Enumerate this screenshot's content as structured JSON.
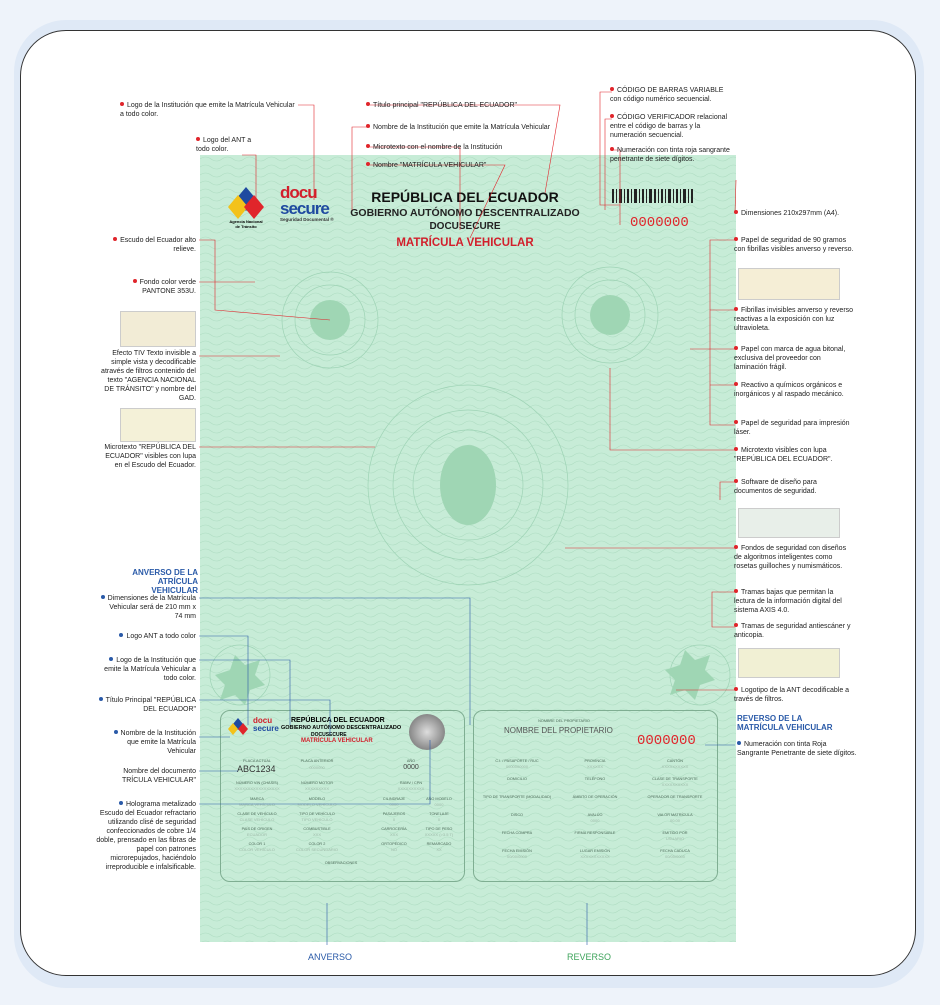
{
  "header": {
    "country": "REPÚBLICA DEL ECUADOR",
    "institution": "GOBIERNO AUTÓNOMO DESCENTRALIZADO",
    "institution_sub": "DOCUSECURE",
    "document_name": "MATRÍCULA VEHICULAR",
    "serial": "0000000",
    "ant_logo_lines": [
      "Agencia Nacional",
      "de Tránsito"
    ],
    "docusecure_logo": [
      "docu",
      "secure",
      "Seguridad Documental ®"
    ]
  },
  "left_annotations": [
    "Logo de la Institución que emite la Matrícula Vehicular a todo color.",
    "Logo del ANT a todo color.",
    "Escudo del Ecuador alto relieve.",
    "Fondo color verde PANTONE 353U.",
    "Efecto TIV Texto invisible a simple vista y decodificable através de filtros contenido del texto \"AGENCIA NACIONAL DE TRÁNSITO\" y nombre del GAD.",
    "Microtexto \"REPÚBLICA DEL ECUADOR\" visibles con lupa en el Escudo del Ecuador."
  ],
  "top_annotations": [
    "Título principal \"REPÚBLICA DEL ECUADOR\"",
    "Nombre de la Institución que emite la Matrícula Vehicular",
    "Microtexto con el nombre de la Institución",
    "Nombre \"MATRÍCULA VEHICULAR\""
  ],
  "right_annotations": [
    "CÓDIGO DE BARRAS VARIABLE con código numérico secuencial.",
    "CÓDIGO VERIFICADOR relacional entre el código de barras y la numeración secuencial.",
    "Numeración con tinta roja sangrante penetrante de siete dígitos.",
    "Dimensiones 210x297mm (A4).",
    "Papel de seguridad de 90 gramos con fibrillas visibles anverso y reverso.",
    "Fibrillas invisibles anverso y reverso reactivas a la exposición con luz ultravioleta.",
    "Papel con marca de agua bitonal, exclusiva del proveedor con laminación frágil.",
    "Reactivo a químicos orgánicos e inorgánicos y al raspado mecánico.",
    "Papel de seguridad para impresión láser.",
    "Microtexto visibles con lupa \"REPÚBLICA DEL ECUADOR\".",
    "Software de diseño para documentos de seguridad.",
    "Fondos de seguridad con diseños de algoritmos inteligentes como rosetas guilloches y numismáticos.",
    "Tramas bajas que permitan la lectura de la información digital del sistema AXIS 4.0.",
    "Tramas de seguridad antiescáner y anticopia.",
    "Logotipo de la ANT decodificable a través de filtros."
  ],
  "anverso_section": {
    "title": "ANVERSO DE LA ATRÍCULA VEHICULAR",
    "items": [
      "Dimensiones de la Matrícula Vehicular será de 210 mm x 74 mm",
      "Logo ANT a todo color",
      "Logo de la Institución que emite la Matrícula Vehicular a todo color.",
      "Título Principal \"REPÚBLICA DEL ECUADOR\"",
      "Nombre de la Institución que emite la Matrícula Vehicular",
      "Nombre del documento TRÍCULA VEHICULAR\"",
      "Holograma metalizado Escudo del Ecuador refractario utilizando clisé de seguridad confeccionados de cobre 1/4 doble, prensado en las fibras de papel con patrones microrepujados, haciéndolo irreproducible e infalsificable."
    ]
  },
  "reverso_section": {
    "title": "REVERSO DE LA MATRÍCULA VEHICULAR",
    "item": "Numeración con tinta Roja Sangrante Penetrante de siete dígitos."
  },
  "anverso_card": {
    "country": "REPÚBLICA DEL ECUADOR",
    "institution": "GOBIERNO AUTÓNOMO DESCENTRALIZADO",
    "institution_sub": "DOCUSECURE",
    "document_name": "MATRÍCULA VEHICULAR",
    "plate_label": "PLACA ACTUAL",
    "plate_value": "ABC1234",
    "prev_plate_label": "PLACA ANTERIOR",
    "prev_plate_value": "0000000",
    "year_label": "AÑO",
    "year_value": "0000",
    "vin_label": "NÚMERO VIN (CHASIS)",
    "vin_value": "XXXXXXXXXXXXXXXXX",
    "motor_label": "NÚMERO MOTOR",
    "motor_value": "XXXXXXXXX",
    "ramv_label": "RAMV / CPN",
    "ramv_value": "XXXXXXXXXX",
    "fields": [
      [
        "MARCA",
        "MARCA VEHÍCULO"
      ],
      [
        "MODELO",
        "MODELO VEHÍCULO"
      ],
      [
        "CILINDRAJE",
        "0000"
      ],
      [
        "AÑO MODELO",
        "0000"
      ],
      [
        "CLASE DE VEHÍCULO",
        "CLASE VEHÍCULO"
      ],
      [
        "TIPO DE VEHÍCULO",
        "TIPO VEHÍCULO"
      ],
      [
        "PASAJEROS",
        "0"
      ],
      [
        "TONELAJE",
        "0"
      ],
      [
        "PAÍS DE ORIGEN",
        "ECUADOR"
      ],
      [
        "COMBUSTIBLE",
        "XXX"
      ],
      [
        "CARROCERÍA",
        "XXX"
      ],
      [
        "TIPO DE PESO",
        "XXXXX (>3.5 T)"
      ],
      [
        "COLOR 1",
        "COLOR VEHÍCULO"
      ],
      [
        "COLOR 2",
        "COLOR SECUNDARIO"
      ],
      [
        "ORTOPÉDICO",
        "NO"
      ],
      [
        "REMARCADO",
        "XX"
      ]
    ],
    "observations_label": "OBSERVACIONES"
  },
  "reverso_card": {
    "owner_label": "NOMBRE DEL PROPIETARIO",
    "owner_value": "NOMBRE DEL PROPIETARIO",
    "serial": "0000000",
    "fields": [
      [
        "C.I. / PASAPORTE / RUC",
        "0000000000"
      ],
      [
        "PROVINCIA",
        "XXXXXX"
      ],
      [
        "CANTÓN",
        "XXXXXXXXXX"
      ],
      [
        "DOMICILIO",
        ""
      ],
      [
        "TELÉFONO",
        ""
      ],
      [
        "CLASE DE TRANSPORTE",
        "XXXXXXXXXX"
      ],
      [
        "TIPO DE TRANSPORTE (MODALIDAD)",
        ""
      ],
      [
        "ÁMBITO DE OPERACIÓN",
        ""
      ],
      [
        "OPERADOR DE TRANSPORTE",
        ""
      ],
      [
        "DISCO",
        ""
      ],
      [
        "AVALÚO",
        "0000"
      ],
      [
        "VALOR MATRÍCULA",
        "00.00"
      ],
      [
        "FECHA COMPRA",
        ""
      ],
      [
        "FIRMA RESPONSABLE",
        ""
      ],
      [
        "EMITIDO POR",
        "USUARIO"
      ],
      [
        "FECHA EMISIÓN",
        "00/00/0000"
      ],
      [
        "LUGAR EMISIÓN",
        "XXXXXXXXXXX"
      ],
      [
        "FECHA CADUCA",
        "00/00/0000"
      ]
    ]
  },
  "footer": {
    "anverso_label": "ANVERSO",
    "reverso_label": "REVERSO"
  },
  "colors": {
    "paper_green": "#c7ecd7",
    "accent_red": "#e0252b",
    "accent_blue": "#2a5aa8",
    "reverso_green": "#3fa45c"
  }
}
